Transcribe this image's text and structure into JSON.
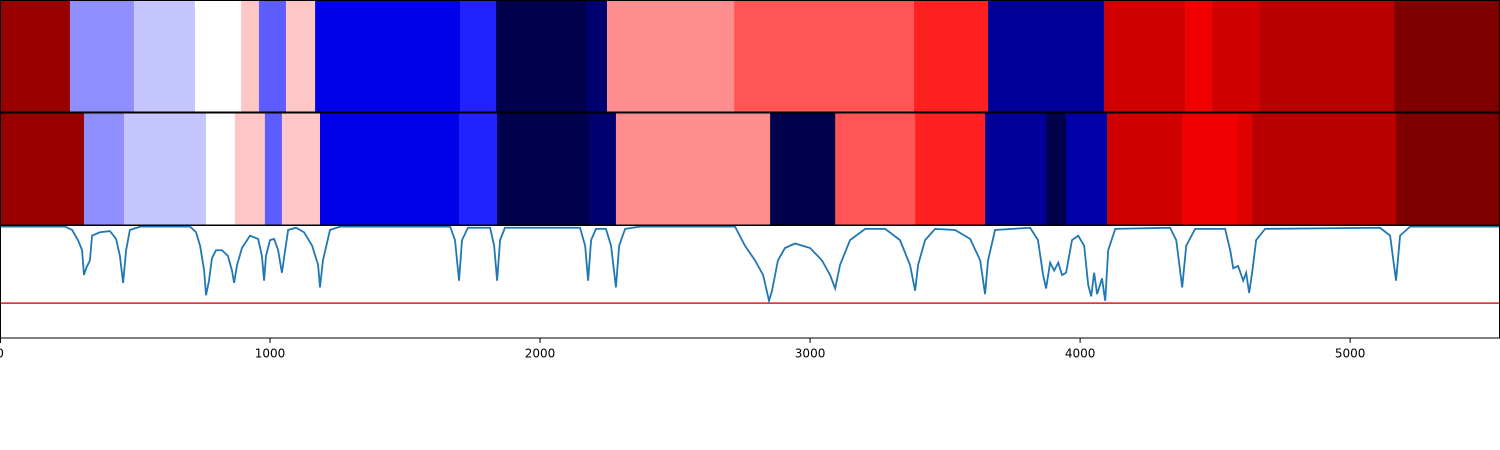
{
  "chart_data": [
    {
      "type": "segments",
      "xlim": [
        0,
        5555
      ],
      "edges": [
        0,
        259,
        496,
        722,
        893,
        959,
        1059,
        1167,
        1704,
        1837,
        2174,
        2248,
        2719,
        3385,
        3659,
        4089,
        4389,
        4489,
        4667,
        5163,
        5555
      ],
      "colors": [
        "#990000",
        "#8f8fff",
        "#c6c6ff",
        "#ffffff",
        "#ffc6c6",
        "#5d5dff",
        "#ffc6c6",
        "#0000e8",
        "#2222ff",
        "#00004d",
        "#000070",
        "#ff8f8f",
        "#ff5555",
        "#ff2020",
        "#000098",
        "#d00000",
        "#f00000",
        "#d00000",
        "#b80000",
        "#800000"
      ]
    },
    {
      "type": "segments",
      "xlim": [
        0,
        5555
      ],
      "edges": [
        0,
        311,
        459,
        763,
        870,
        981,
        1044,
        1185,
        1700,
        1841,
        2181,
        2281,
        2852,
        3093,
        3389,
        3648,
        3874,
        3948,
        4100,
        4378,
        4585,
        4637,
        5170,
        5555
      ],
      "colors": [
        "#990000",
        "#8f8fff",
        "#c6c6ff",
        "#ffffff",
        "#ffc6c6",
        "#5d5dff",
        "#ffc6c6",
        "#0000e8",
        "#2222ff",
        "#00004d",
        "#000070",
        "#ff8f8f",
        "#00004d",
        "#ff5555",
        "#ff2020",
        "#000098",
        "#00004d",
        "#0000a8",
        "#d00000",
        "#f00000",
        "#e00000",
        "#b80000",
        "#800000"
      ]
    },
    {
      "type": "line",
      "xlim": [
        0,
        5555
      ],
      "xticks": [
        0,
        1000,
        2000,
        3000,
        4000,
        5000
      ],
      "ylim": [
        0,
        1
      ],
      "color": "#1f77b4",
      "threshold": 0.31,
      "threshold_color": "#e41a1c",
      "x": [
        0,
        241,
        267,
        289,
        304,
        311,
        319,
        333,
        341,
        370,
        407,
        430,
        444,
        456,
        467,
        481,
        519,
        704,
        726,
        741,
        756,
        763,
        774,
        785,
        800,
        822,
        844,
        859,
        867,
        878,
        896,
        926,
        956,
        970,
        978,
        985,
        1000,
        1015,
        1030,
        1044,
        1056,
        1067,
        1096,
        1126,
        1156,
        1178,
        1185,
        1196,
        1222,
        1259,
        1667,
        1685,
        1700,
        1711,
        1733,
        1815,
        1830,
        1841,
        1852,
        1870,
        2148,
        2167,
        2178,
        2189,
        2207,
        2244,
        2263,
        2281,
        2293,
        2315,
        2370,
        2722,
        2759,
        2796,
        2826,
        2848,
        2859,
        2881,
        2907,
        2944,
        3000,
        3044,
        3074,
        3093,
        3111,
        3148,
        3204,
        3278,
        3333,
        3370,
        3389,
        3400,
        3426,
        3463,
        3537,
        3593,
        3630,
        3648,
        3659,
        3685,
        3815,
        3844,
        3863,
        3874,
        3889,
        3904,
        3919,
        3933,
        3948,
        3970,
        3993,
        4015,
        4030,
        4041,
        4052,
        4063,
        4081,
        4093,
        4104,
        4130,
        4333,
        4356,
        4378,
        4393,
        4426,
        4537,
        4556,
        4567,
        4585,
        4604,
        4615,
        4626,
        4637,
        4652,
        4685,
        5111,
        5148,
        5170,
        5185,
        5222,
        5555
      ],
      "values": [
        0.99,
        0.99,
        0.96,
        0.87,
        0.78,
        0.56,
        0.62,
        0.69,
        0.91,
        0.94,
        0.95,
        0.88,
        0.73,
        0.49,
        0.78,
        0.96,
        0.99,
        0.99,
        0.94,
        0.82,
        0.6,
        0.38,
        0.51,
        0.71,
        0.78,
        0.78,
        0.73,
        0.6,
        0.49,
        0.65,
        0.8,
        0.91,
        0.88,
        0.73,
        0.51,
        0.73,
        0.87,
        0.88,
        0.78,
        0.58,
        0.78,
        0.96,
        0.98,
        0.94,
        0.82,
        0.65,
        0.45,
        0.69,
        0.96,
        0.99,
        0.99,
        0.87,
        0.51,
        0.87,
        0.98,
        0.98,
        0.82,
        0.51,
        0.87,
        0.98,
        0.98,
        0.82,
        0.51,
        0.87,
        0.97,
        0.97,
        0.82,
        0.45,
        0.82,
        0.97,
        0.99,
        0.99,
        0.82,
        0.69,
        0.56,
        0.33,
        0.42,
        0.69,
        0.8,
        0.84,
        0.8,
        0.69,
        0.56,
        0.44,
        0.65,
        0.87,
        0.97,
        0.97,
        0.87,
        0.65,
        0.42,
        0.65,
        0.87,
        0.97,
        0.96,
        0.88,
        0.69,
        0.39,
        0.69,
        0.96,
        0.98,
        0.87,
        0.56,
        0.44,
        0.67,
        0.6,
        0.67,
        0.56,
        0.58,
        0.87,
        0.91,
        0.82,
        0.47,
        0.37,
        0.58,
        0.39,
        0.53,
        0.33,
        0.78,
        0.97,
        0.98,
        0.87,
        0.45,
        0.82,
        0.97,
        0.97,
        0.78,
        0.62,
        0.64,
        0.51,
        0.58,
        0.4,
        0.58,
        0.87,
        0.97,
        0.98,
        0.91,
        0.51,
        0.91,
        0.99,
        0.99
      ]
    }
  ]
}
